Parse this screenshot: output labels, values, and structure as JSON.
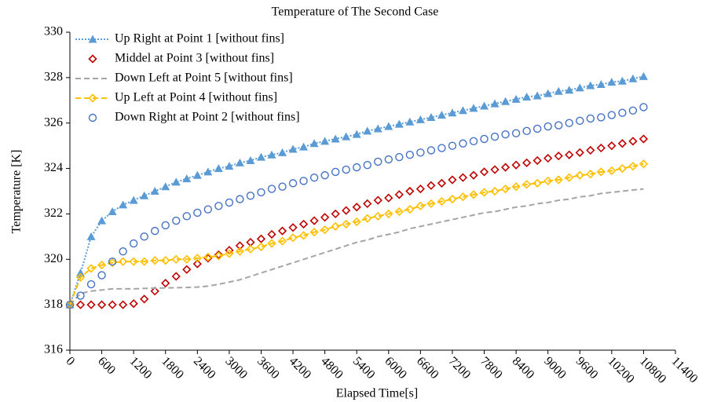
{
  "chart_data": {
    "type": "line",
    "title": "Temperature of The Second Case",
    "xlabel": "Elapsed Time[s]",
    "ylabel": "Temperature [K]",
    "xlim": [
      0,
      11400
    ],
    "xticks": [
      0,
      600,
      1200,
      1800,
      2400,
      3000,
      3600,
      4200,
      4800,
      5400,
      6000,
      6600,
      7200,
      7800,
      8400,
      9000,
      9600,
      10200,
      10800,
      11400
    ],
    "ylim": [
      316,
      330
    ],
    "yticks": [
      316,
      318,
      320,
      322,
      324,
      326,
      328,
      330
    ],
    "grid": false,
    "legend": "upper left",
    "x": [
      0,
      200,
      400,
      600,
      800,
      1000,
      1200,
      1400,
      1600,
      1800,
      2000,
      2200,
      2400,
      2600,
      2800,
      3000,
      3200,
      3400,
      3600,
      3800,
      4000,
      4200,
      4400,
      4600,
      4800,
      5000,
      5200,
      5400,
      5600,
      5800,
      6000,
      6200,
      6400,
      6600,
      6800,
      7000,
      7200,
      7400,
      7600,
      7800,
      8000,
      8200,
      8400,
      8600,
      8800,
      9000,
      9200,
      9400,
      9600,
      9800,
      10000,
      10200,
      10400,
      10600,
      10800
    ],
    "series": [
      {
        "name": "Up Right at Point 1 [without fins]",
        "color": "#5b9bd5",
        "marker": "triangle",
        "line": "dotted",
        "values": [
          318,
          319.4,
          321.0,
          321.7,
          322.1,
          322.4,
          322.6,
          322.8,
          323.0,
          323.2,
          323.4,
          323.55,
          323.7,
          323.85,
          324.0,
          324.1,
          324.25,
          324.35,
          324.5,
          324.6,
          324.7,
          324.85,
          324.95,
          325.1,
          325.2,
          325.3,
          325.4,
          325.5,
          325.65,
          325.75,
          325.85,
          325.95,
          326.05,
          326.15,
          326.25,
          326.35,
          326.45,
          326.55,
          326.65,
          326.75,
          326.85,
          326.95,
          327.05,
          327.15,
          327.2,
          327.3,
          327.4,
          327.45,
          327.55,
          327.65,
          327.7,
          327.8,
          327.85,
          327.95,
          328.05
        ]
      },
      {
        "name": "Middel at Point 3 [without fins]",
        "color": "#c00000",
        "marker": "diamond",
        "line": "none",
        "values": [
          318,
          318,
          318,
          318,
          318,
          318,
          318.05,
          318.25,
          318.6,
          318.95,
          319.25,
          319.55,
          319.8,
          320.05,
          320.2,
          320.4,
          320.6,
          320.75,
          320.9,
          321.1,
          321.25,
          321.4,
          321.55,
          321.7,
          321.85,
          322.0,
          322.15,
          322.3,
          322.45,
          322.6,
          322.7,
          322.85,
          323.0,
          323.1,
          323.25,
          323.35,
          323.5,
          323.6,
          323.7,
          323.85,
          323.95,
          324.05,
          324.15,
          324.25,
          324.35,
          324.45,
          324.55,
          324.6,
          324.7,
          324.8,
          324.9,
          325.0,
          325.1,
          325.2,
          325.3
        ]
      },
      {
        "name": "Down Left at Point 5 [without fins]",
        "color": "#a5a5a5",
        "marker": "none",
        "line": "dashed",
        "values": [
          318,
          318.5,
          318.6,
          318.65,
          318.7,
          318.7,
          318.7,
          318.72,
          318.73,
          318.74,
          318.75,
          318.76,
          318.78,
          318.82,
          318.9,
          319.0,
          319.1,
          319.25,
          319.4,
          319.55,
          319.7,
          319.85,
          320.0,
          320.15,
          320.3,
          320.45,
          320.6,
          320.75,
          320.85,
          321.0,
          321.1,
          321.2,
          321.35,
          321.45,
          321.55,
          321.65,
          321.75,
          321.85,
          321.95,
          322.05,
          322.1,
          322.2,
          322.3,
          322.35,
          322.45,
          322.5,
          322.6,
          322.65,
          322.75,
          322.8,
          322.9,
          322.95,
          323.0,
          323.05,
          323.1
        ]
      },
      {
        "name": "Up Left at Point 4 [without fins]",
        "color": "#ffc000",
        "marker": "diamond",
        "line": "dashed",
        "values": [
          318,
          319.2,
          319.6,
          319.75,
          319.85,
          319.9,
          319.9,
          319.9,
          319.95,
          319.95,
          320.0,
          320.0,
          320.05,
          320.1,
          320.15,
          320.25,
          320.35,
          320.45,
          320.55,
          320.7,
          320.8,
          320.95,
          321.05,
          321.2,
          321.3,
          321.45,
          321.55,
          321.65,
          321.8,
          321.9,
          322.0,
          322.1,
          322.2,
          322.35,
          322.45,
          322.55,
          322.65,
          322.75,
          322.85,
          322.95,
          323.0,
          323.1,
          323.2,
          323.3,
          323.35,
          323.45,
          323.5,
          323.6,
          323.7,
          323.75,
          323.85,
          323.9,
          324.0,
          324.1,
          324.2
        ]
      },
      {
        "name": "Down Right at Point 2 [without fins]",
        "color": "#4472c4",
        "marker": "circle",
        "line": "none",
        "values": [
          318,
          318.4,
          318.9,
          319.3,
          319.9,
          320.35,
          320.7,
          321.0,
          321.25,
          321.5,
          321.7,
          321.9,
          322.05,
          322.2,
          322.35,
          322.5,
          322.65,
          322.8,
          322.95,
          323.1,
          323.2,
          323.35,
          323.45,
          323.6,
          323.7,
          323.85,
          323.95,
          324.05,
          324.15,
          324.3,
          324.4,
          324.5,
          324.6,
          324.7,
          324.8,
          324.9,
          325.0,
          325.1,
          325.2,
          325.3,
          325.4,
          325.5,
          325.55,
          325.65,
          325.75,
          325.85,
          325.9,
          326.0,
          326.1,
          326.2,
          326.25,
          326.35,
          326.45,
          326.55,
          326.7
        ]
      }
    ]
  }
}
